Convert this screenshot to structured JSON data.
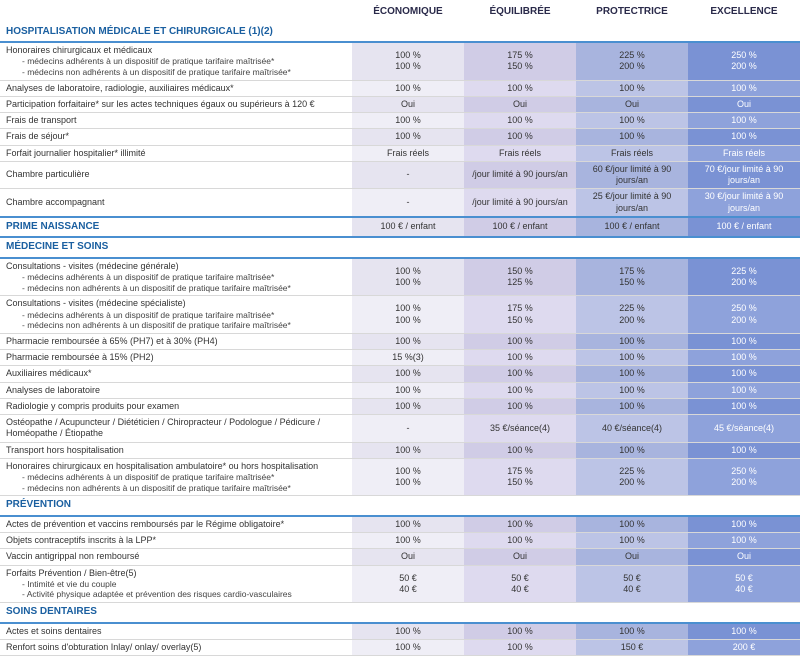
{
  "plans": [
    "ÉCONOMIQUE",
    "ÉQUILIBRÉE",
    "PROTECTRICE",
    "EXCELLENCE"
  ],
  "colors": {
    "section_text": "#1a5fa0",
    "section_border": "#4a8fd0",
    "row_border": "#d8d8d8",
    "col_bg": [
      "#e6e4f0",
      "#d0cce6",
      "#a8b4de",
      "#7a92d4"
    ],
    "col_bg_alt": [
      "#efeef6",
      "#dedaef",
      "#bcc4e6",
      "#8ea2db"
    ]
  },
  "sections": [
    {
      "title": "HOSPITALISATION MÉDICALE ET CHIRURGICALE (1)(2)",
      "rows": [
        {
          "label": "Honoraires chirurgicaux et médicaux",
          "subs": [
            "- médecins adhérents à un dispositif de pratique tarifaire maîtrisée*",
            "- médecins non adhérents à un dispositif de pratique tarifaire maîtrisée*"
          ],
          "values": [
            "100 %\n100 %",
            "175 %\n150 %",
            "225 %\n200 %",
            "250 %\n200 %"
          ]
        },
        {
          "label": "Analyses de laboratoire, radiologie, auxiliaires médicaux*",
          "values": [
            "100 %",
            "100 %",
            "100 %",
            "100 %"
          ]
        },
        {
          "label": "Participation forfaitaire* sur les actes techniques égaux ou supérieurs à 120 €",
          "values": [
            "Oui",
            "Oui",
            "Oui",
            "Oui"
          ]
        },
        {
          "label": "Frais de transport",
          "values": [
            "100 %",
            "100 %",
            "100 %",
            "100 %"
          ]
        },
        {
          "label": "Frais de séjour*",
          "values": [
            "100 %",
            "100 %",
            "100 %",
            "100 %"
          ]
        },
        {
          "label": "Forfait journalier hospitalier* illimité",
          "values": [
            "Frais réels",
            "Frais réels",
            "Frais réels",
            "Frais réels"
          ]
        },
        {
          "label": "Chambre particulière",
          "values": [
            "-",
            "/jour limité à 90 jours/an",
            "60 €/jour limité à 90 jours/an",
            "70 €/jour limité à 90 jours/an"
          ]
        },
        {
          "label": "Chambre accompagnant",
          "values": [
            "-",
            "/jour limité à 90 jours/an",
            "25 €/jour limité à 90 jours/an",
            "30 €/jour limité à 90 jours/an"
          ]
        }
      ]
    },
    {
      "title": "PRIME NAISSANCE",
      "inline": true,
      "values": [
        "100 € / enfant",
        "100 € / enfant",
        "100 € / enfant",
        "100 € / enfant"
      ]
    },
    {
      "title": "MÉDECINE ET SOINS",
      "rows": [
        {
          "label": "Consultations - visites (médecine générale)",
          "subs": [
            "- médecins adhérents à un dispositif de pratique tarifaire maîtrisée*",
            "- médecins non adhérents à un dispositif de pratique tarifaire maîtrisée*"
          ],
          "values": [
            "100 %\n100 %",
            "150 %\n125 %",
            "175 %\n150 %",
            "225 %\n200 %"
          ]
        },
        {
          "label": "Consultations - visites (médecine spécialiste)",
          "subs": [
            "- médecins adhérents à un dispositif de pratique tarifaire maîtrisée*",
            "- médecins non adhérents à un dispositif de pratique tarifaire maîtrisée*"
          ],
          "values": [
            "100 %\n100 %",
            "175 %\n150 %",
            "225 %\n200 %",
            "250 %\n200 %"
          ]
        },
        {
          "label": "Pharmacie remboursée à 65% (PH7) et à 30% (PH4)",
          "values": [
            "100 %",
            "100 %",
            "100 %",
            "100 %"
          ]
        },
        {
          "label": "Pharmacie remboursée à 15% (PH2)",
          "values": [
            "15 %(3)",
            "100 %",
            "100 %",
            "100 %"
          ]
        },
        {
          "label": "Auxiliaires médicaux*",
          "values": [
            "100 %",
            "100 %",
            "100 %",
            "100 %"
          ]
        },
        {
          "label": "Analyses de laboratoire",
          "values": [
            "100 %",
            "100 %",
            "100 %",
            "100 %"
          ]
        },
        {
          "label": "Radiologie y compris produits pour examen",
          "values": [
            "100 %",
            "100 %",
            "100 %",
            "100 %"
          ]
        },
        {
          "label": "Ostéopathe / Acupuncteur / Diététicien / Chiropracteur / Podologue / Pédicure / Homéopathe / Étiopathe",
          "values": [
            "-",
            "35 €/séance(4)",
            "40 €/séance(4)",
            "45 €/séance(4)"
          ]
        },
        {
          "label": "Transport hors hospitalisation",
          "values": [
            "100 %",
            "100 %",
            "100 %",
            "100 %"
          ]
        },
        {
          "label": "Honoraires chirurgicaux en hospitalisation ambulatoire* ou hors hospitalisation",
          "subs": [
            "- médecins adhérents à un dispositif de pratique tarifaire maîtrisée*",
            "- médecins non adhérents à un dispositif de pratique tarifaire maîtrisée*"
          ],
          "values": [
            "100 %\n100 %",
            "175 %\n150 %",
            "225 %\n200 %",
            "250 %\n200 %"
          ]
        }
      ]
    },
    {
      "title": "PRÉVENTION",
      "rows": [
        {
          "label": "Actes de prévention et vaccins remboursés par le Régime obligatoire*",
          "values": [
            "100 %",
            "100 %",
            "100 %",
            "100 %"
          ]
        },
        {
          "label": "Objets contraceptifs inscrits à la LPP*",
          "values": [
            "100 %",
            "100 %",
            "100 %",
            "100 %"
          ]
        },
        {
          "label": "Vaccin antigrippal non remboursé",
          "values": [
            "Oui",
            "Oui",
            "Oui",
            "Oui"
          ]
        },
        {
          "label": "Forfaits Prévention / Bien-être(5)",
          "subs": [
            "- Intimité et vie du couple",
            "- Activité physique adaptée et prévention des risques cardio-vasculaires"
          ],
          "values": [
            "50 €\n40 €",
            "50 €\n40 €",
            "50 €\n40 €",
            "50 €\n40 €"
          ]
        }
      ]
    },
    {
      "title": "SOINS DENTAIRES",
      "rows": [
        {
          "label": "Actes et soins dentaires",
          "values": [
            "100 %",
            "100 %",
            "100 %",
            "100 %"
          ]
        },
        {
          "label": "Renfort soins d'obturation Inlay/ onlay/ overlay(5)",
          "values": [
            "100 %",
            "100 %",
            "150 €",
            "200 €"
          ]
        }
      ]
    }
  ]
}
